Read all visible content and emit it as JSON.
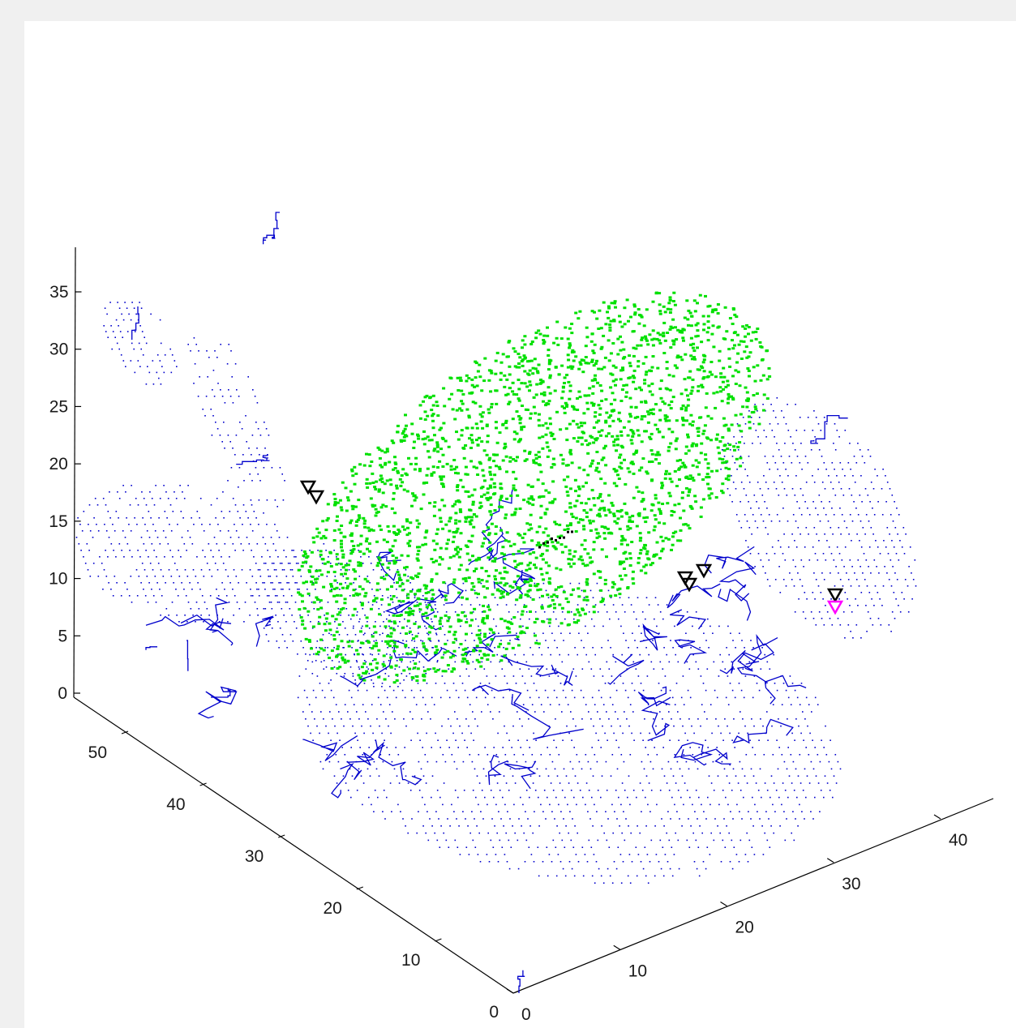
{
  "figure": {
    "background": "#f0f0f0",
    "axes_background": "#ffffff"
  },
  "chart_data": {
    "type": "scatter",
    "projection": "3d",
    "title": "",
    "xlabel": "",
    "ylabel": "",
    "zlabel": "",
    "grid": false,
    "legend": "none",
    "x_axis": {
      "ticks": [
        "0",
        "10",
        "20",
        "30",
        "40"
      ],
      "ylim_note": "right-front axis",
      "range": [
        0,
        45
      ]
    },
    "y_axis": {
      "ticks": [
        "0",
        "10",
        "20",
        "30",
        "40",
        "50"
      ],
      "range": [
        0,
        55
      ]
    },
    "z_axis": {
      "ticks": [
        "0",
        "5",
        "10",
        "15",
        "20",
        "25",
        "30",
        "35"
      ],
      "range": [
        0,
        38
      ]
    },
    "series": [
      {
        "color": "#0000cc",
        "marker": "dot",
        "style": "points and line network (blue)"
      },
      {
        "color": "#00e000",
        "marker": "dot",
        "style": "dense point cloud (green)"
      },
      {
        "color": "#000000",
        "marker": "triangle-down",
        "count": 7
      },
      {
        "color": "#ff00ff",
        "marker": "triangle-down",
        "count": 1
      }
    ]
  }
}
